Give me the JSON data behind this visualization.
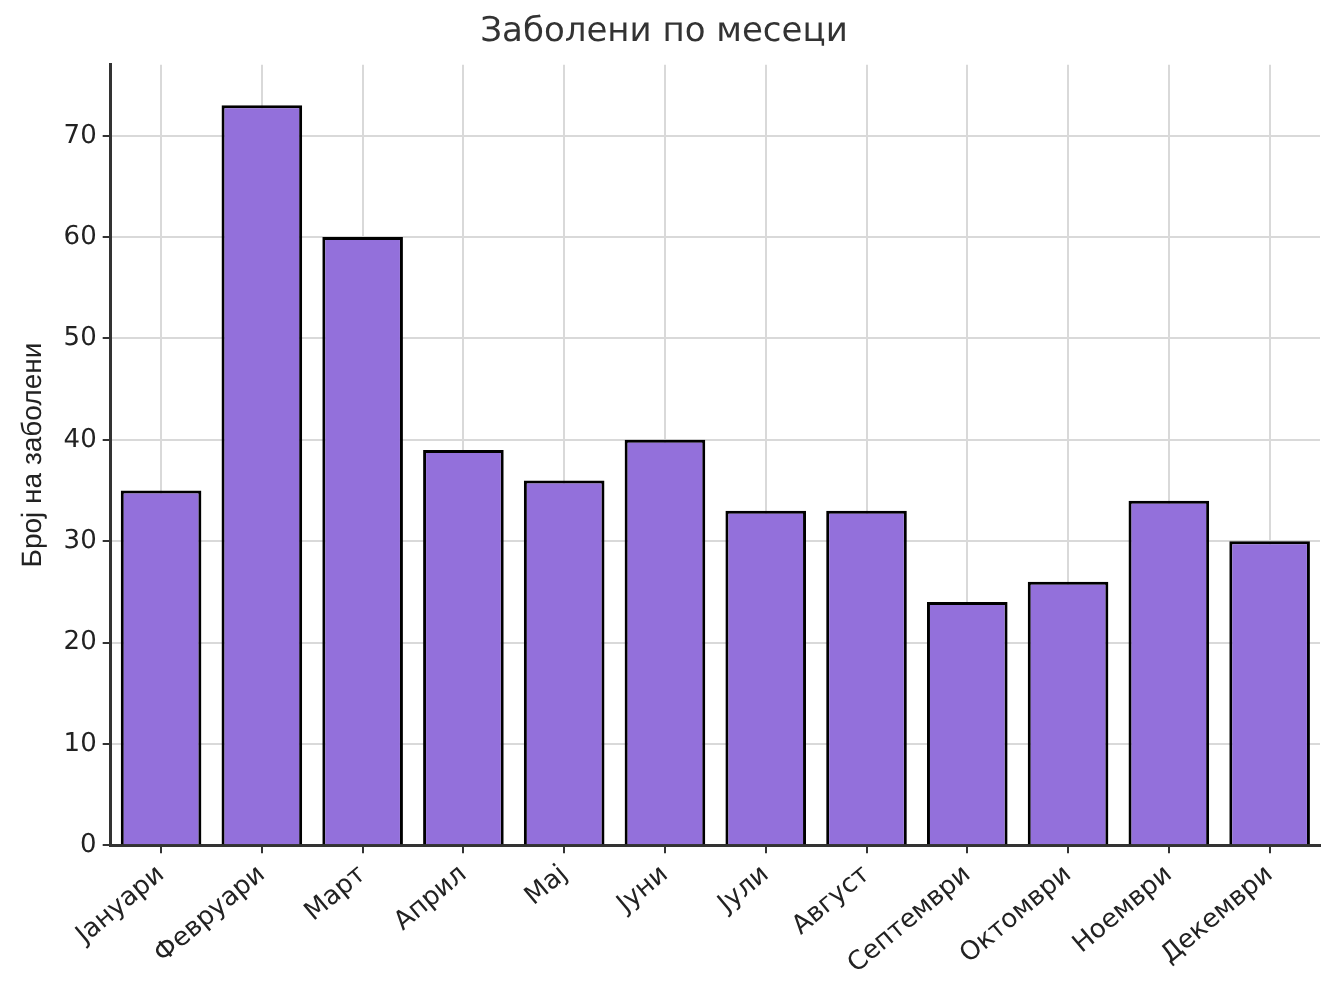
{
  "chart_data": {
    "type": "bar",
    "title": "Заболени по месеци",
    "ylabel": "Број на заболени",
    "categories": [
      "Јануари",
      "Февруари",
      "Март",
      "Април",
      "Мај",
      "Јуни",
      "Јули",
      "Август",
      "Септември",
      "Октомври",
      "Ноември",
      "Декември"
    ],
    "values": [
      35,
      73,
      60,
      39,
      36,
      40,
      33,
      33,
      24,
      26,
      34,
      30
    ],
    "color": "#9370db",
    "ylim": [
      0,
      77
    ],
    "yticks": [
      0,
      10,
      20,
      30,
      40,
      50,
      60,
      70
    ],
    "grid": true
  }
}
